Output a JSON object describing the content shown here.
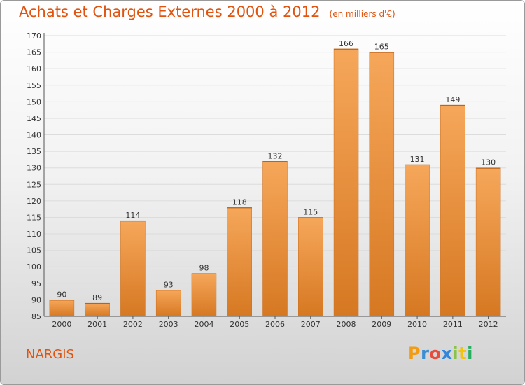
{
  "title": "Achats et Charges Externes 2000 à 2012",
  "subtitle": "(en milliers d'€)",
  "place": "NARGIS",
  "logo": {
    "letters": [
      "P",
      "r",
      "o",
      "x",
      "i",
      "t",
      "i"
    ],
    "colors": [
      "#f39c12",
      "#3b8ed1",
      "#e74c3c",
      "#2e86de",
      "#8bc34a",
      "#f1c40f",
      "#27ae60"
    ]
  },
  "colors": {
    "accent": "#e05410",
    "bar_light": "#f6a75a",
    "bar_dark": "#d67822"
  },
  "chart_data": {
    "type": "bar",
    "title": "Achats et Charges Externes 2000 à 2012",
    "subtitle": "(en milliers d'€)",
    "categories": [
      "2000",
      "2001",
      "2002",
      "2003",
      "2004",
      "2005",
      "2006",
      "2007",
      "2008",
      "2009",
      "2010",
      "2011",
      "2012"
    ],
    "values": [
      90,
      89,
      114,
      93,
      98,
      118,
      132,
      115,
      166,
      165,
      131,
      149,
      130
    ],
    "ylim": [
      85,
      170
    ],
    "yticks": [
      85,
      90,
      95,
      100,
      105,
      110,
      115,
      120,
      125,
      130,
      135,
      140,
      145,
      150,
      155,
      160,
      165,
      170
    ],
    "grid": true,
    "legend": "none"
  }
}
